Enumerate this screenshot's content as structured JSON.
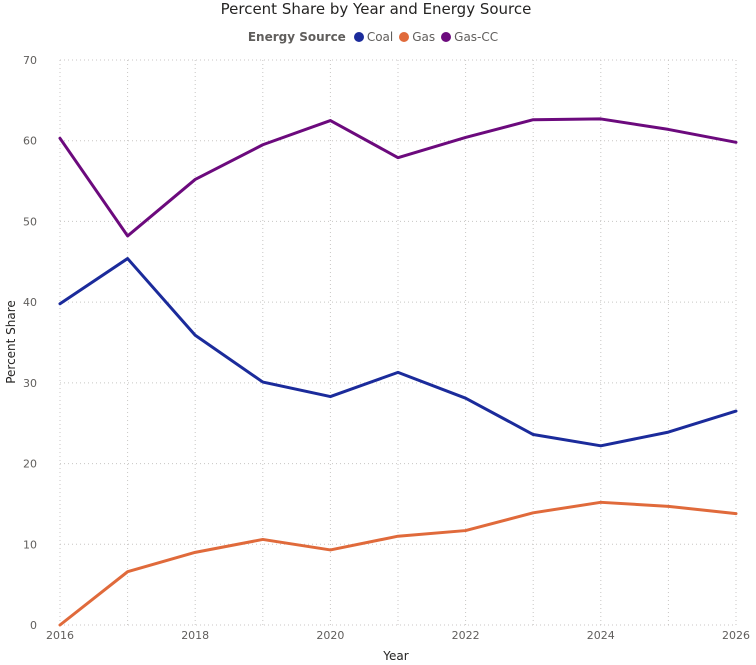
{
  "chart_data": {
    "type": "line",
    "title": "Percent Share by Year and Energy Source",
    "legend_title": "Energy Source",
    "legend_position": "top-center",
    "xlabel": "Year",
    "ylabel": "Percent Share",
    "xlim": [
      2016,
      2026
    ],
    "ylim": [
      0,
      70
    ],
    "x_ticks": [
      2016,
      2018,
      2020,
      2022,
      2024,
      2026
    ],
    "y_ticks": [
      0,
      10,
      20,
      30,
      40,
      50,
      60,
      70
    ],
    "grid": true,
    "x": [
      2016,
      2017,
      2018,
      2019,
      2020,
      2021,
      2022,
      2023,
      2024,
      2025,
      2026
    ],
    "series": [
      {
        "name": "Coal",
        "color": "#1b2b9b",
        "values": [
          39.8,
          45.4,
          35.9,
          30.1,
          28.3,
          31.3,
          28.1,
          23.6,
          22.2,
          23.9,
          26.5
        ]
      },
      {
        "name": "Gas",
        "color": "#e06a3b",
        "values": [
          0.0,
          6.6,
          9.0,
          10.6,
          9.3,
          11.0,
          11.7,
          13.9,
          15.2,
          14.7,
          13.8
        ]
      },
      {
        "name": "Gas-CC",
        "color": "#6c0a7d",
        "values": [
          60.3,
          48.2,
          55.2,
          59.5,
          62.5,
          57.9,
          60.4,
          62.6,
          62.7,
          61.4,
          59.8
        ]
      }
    ]
  }
}
